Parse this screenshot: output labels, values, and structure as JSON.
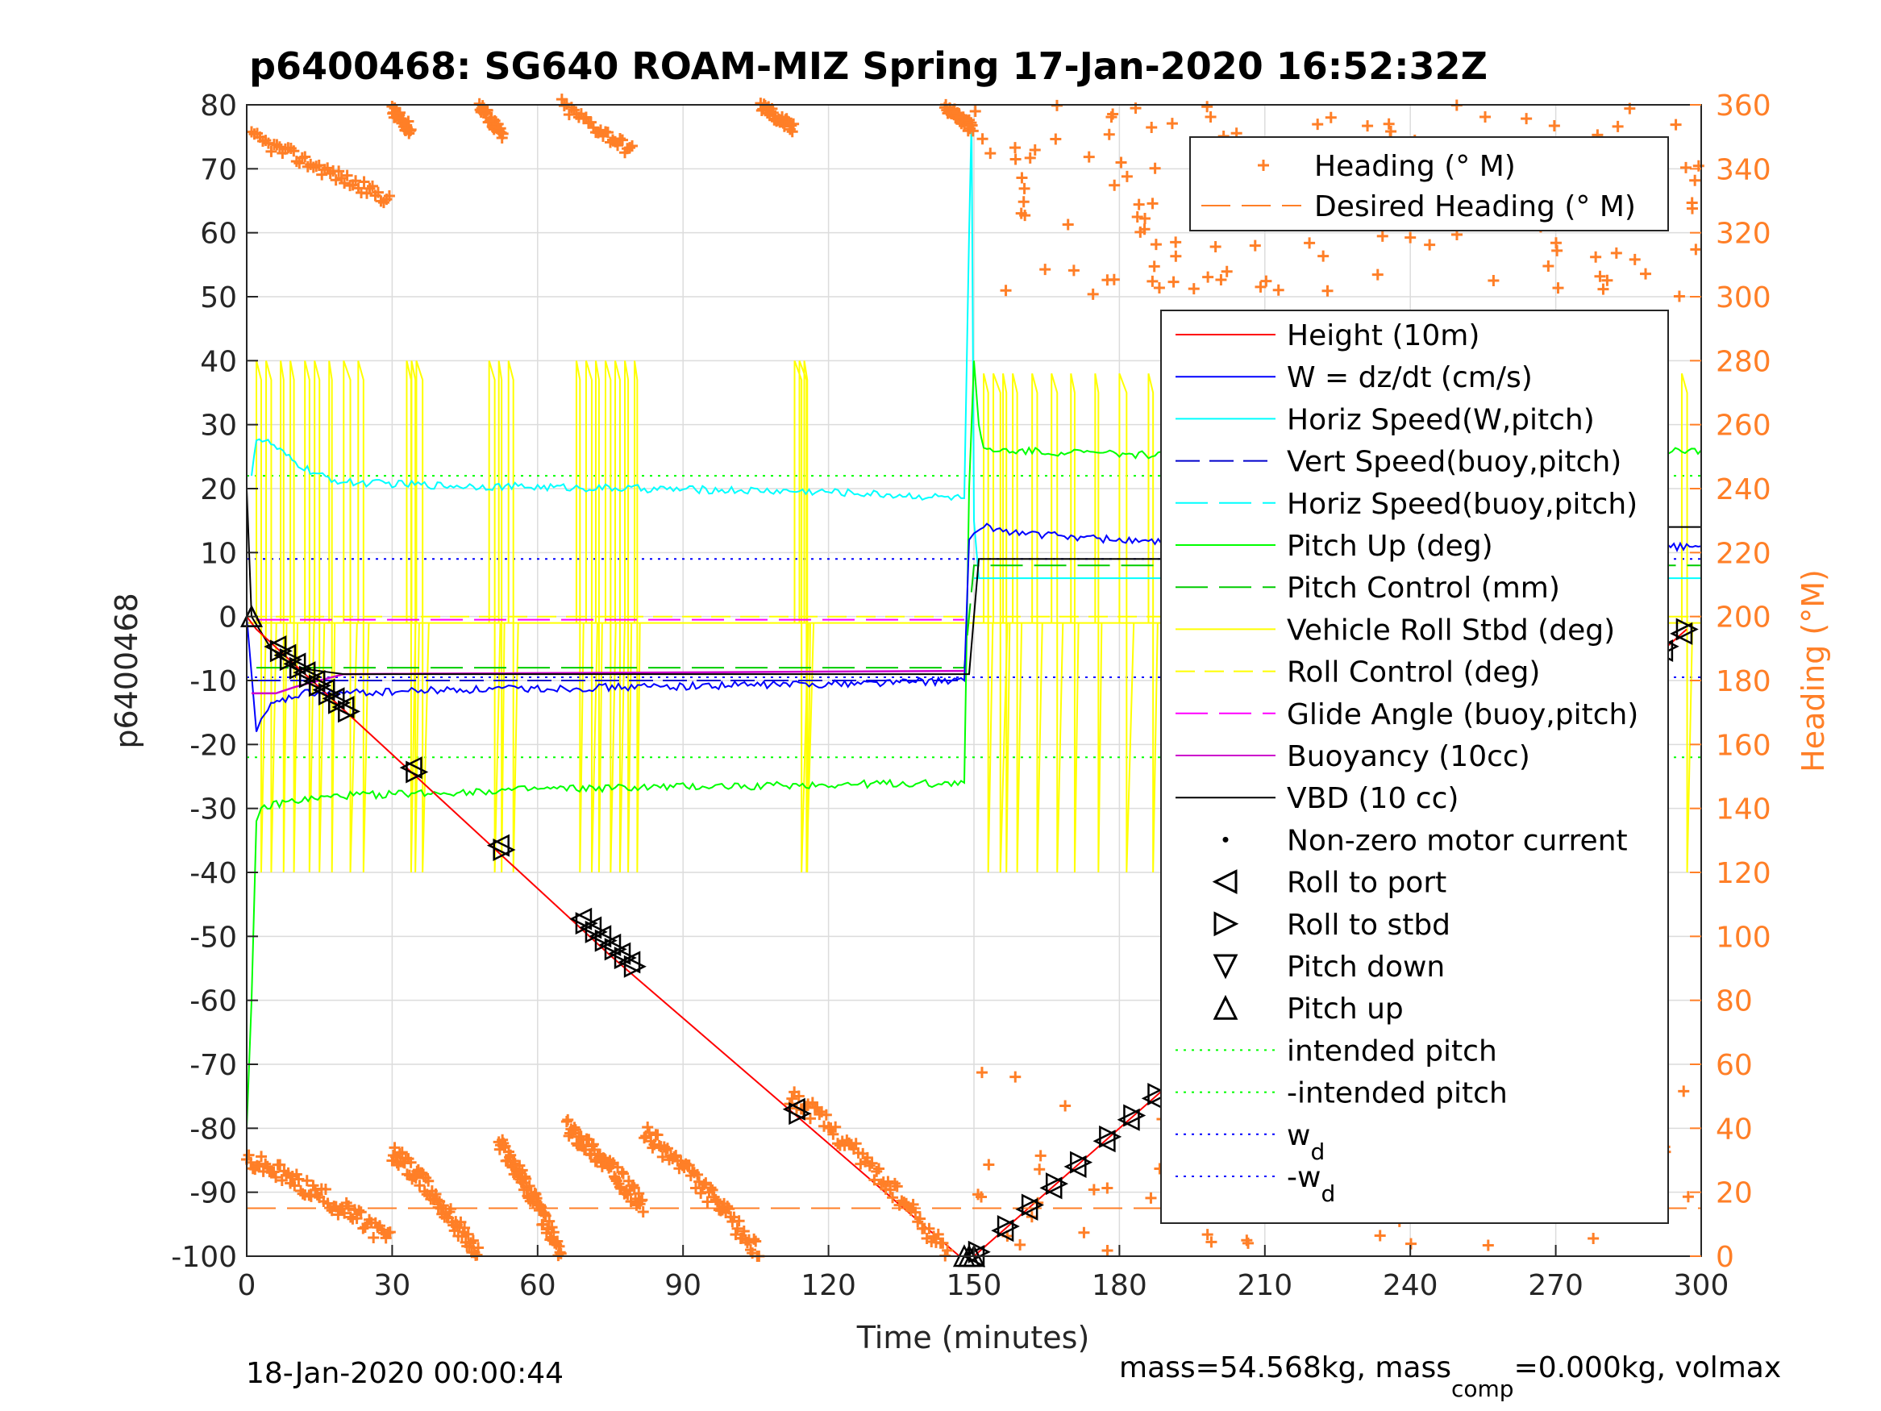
{
  "chart_data": {
    "type": "line",
    "title": "p6400468: SG640 ROAM-MIZ Spring 17-Jan-2020 16:52:32Z",
    "xlabel": "Time (minutes)",
    "ylabel": "p6400468",
    "y2label": "Heading (°M)",
    "xlim": [
      0,
      300
    ],
    "ylim": [
      -100,
      80
    ],
    "y2lim": [
      0,
      360
    ],
    "xticks": [
      0,
      30,
      60,
      90,
      120,
      150,
      180,
      210,
      240,
      270,
      300
    ],
    "yticks": [
      -100,
      -90,
      -80,
      -70,
      -60,
      -50,
      -40,
      -30,
      -20,
      -10,
      0,
      10,
      20,
      30,
      40,
      50,
      60,
      70,
      80
    ],
    "y2ticks": [
      0,
      20,
      40,
      60,
      80,
      100,
      120,
      140,
      160,
      180,
      200,
      220,
      240,
      260,
      280,
      300,
      320,
      340,
      360
    ],
    "grid": true,
    "legend_heading_placement": "top-right",
    "legend_main_placement": "right",
    "footer_left": "18-Jan-2020 00:00:44",
    "footer_right": {
      "a": "mass=54.568kg, mass",
      "sub": "comp",
      "b": "=0.000kg, volmax"
    },
    "colors": {
      "height": "#ff0000",
      "w": "#0000ff",
      "horiz_speed": "#00ffff",
      "vert_speed": "#0000cc",
      "pitch_up": "#00ff00",
      "pitch_control": "#00cc00",
      "roll": "#ffff00",
      "glide_angle": "#ff00ff",
      "buoyancy": "#cc00cc",
      "vbd": "#000000",
      "heading": "#ff7f27",
      "intended_pitch": "#00ff00",
      "wd": "#0000ff"
    },
    "series": [
      {
        "name": "Height (10m)",
        "key": "height",
        "x": [
          0,
          2,
          75,
          147,
          148,
          150,
          297
        ],
        "y": [
          0,
          -2,
          -53,
          -100,
          -100,
          -100,
          -2
        ]
      },
      {
        "name": "W = dz/dt (cm/s)",
        "key": "w",
        "x": [
          0,
          2,
          3,
          5,
          8,
          12,
          20,
          40,
          80,
          120,
          148,
          149,
          150,
          152,
          160,
          200,
          260,
          297,
          300
        ],
        "y": [
          0,
          -18,
          -16,
          -14,
          -13,
          -12,
          -12,
          -11.5,
          -11,
          -10.5,
          -10,
          12,
          13,
          14,
          13,
          11,
          10,
          11,
          11
        ]
      },
      {
        "name": "Horiz Speed(W,pitch)",
        "key": "horiz_speed",
        "x": [
          1,
          2,
          5,
          10,
          15,
          20,
          40,
          80,
          120,
          148,
          149,
          149.5,
          150,
          151
        ],
        "y": [
          22,
          28,
          27,
          24,
          22,
          21,
          20.5,
          20,
          19.5,
          18.5,
          60,
          78,
          15,
          6
        ]
      },
      {
        "name": "Vert Speed(buoy,pitch)",
        "key": "vert_speed",
        "x": [
          2,
          30,
          148
        ],
        "y": [
          -10,
          -10,
          -10
        ]
      },
      {
        "name": "Horiz Speed(buoy,pitch)",
        "key": "horiz_speed_buoy",
        "x": [
          150,
          300
        ],
        "y": [
          6,
          6
        ]
      },
      {
        "name": "Pitch Up (deg)",
        "key": "pitch_up",
        "x": [
          0,
          1,
          2,
          3,
          8,
          20,
          60,
          100,
          148,
          149,
          150,
          151,
          152,
          200,
          260,
          300
        ],
        "y": [
          -80,
          -60,
          -32,
          -30,
          -29,
          -28,
          -27,
          -26.5,
          -26,
          20,
          40,
          30,
          26,
          25,
          25,
          26
        ]
      },
      {
        "name": "Pitch Control (mm)",
        "key": "pitch_control",
        "x": [
          2,
          148,
          150,
          300
        ],
        "y": [
          -8,
          -8,
          8,
          8
        ]
      },
      {
        "name": "Vehicle Roll Stbd (deg)",
        "key": "roll",
        "x": [
          0,
          300
        ],
        "y": [
          -1,
          -1
        ]
      },
      {
        "name": "Roll Control (deg)",
        "key": "roll_control",
        "x": [
          0,
          300
        ],
        "y": [
          0,
          0
        ]
      },
      {
        "name": "Glide Angle (buoy,pitch)",
        "key": "glide_angle",
        "x": [
          2,
          148
        ],
        "y": [
          -0.5,
          -0.5
        ]
      },
      {
        "name": "Buoyancy (10cc)",
        "key": "buoyancy",
        "x": [
          1,
          6,
          10,
          20,
          148
        ],
        "y": [
          -12,
          -12,
          -11,
          -9,
          -8.5
        ]
      },
      {
        "name": "VBD (10 cc)",
        "key": "vbd",
        "x": [
          0,
          1,
          5,
          10,
          20,
          148,
          149,
          150,
          151,
          280,
          281,
          290,
          291,
          300
        ],
        "y": [
          20,
          0,
          -5,
          -8,
          -9,
          -9,
          -9,
          0,
          9,
          9,
          12,
          12,
          14,
          14
        ]
      },
      {
        "name": "Non-zero motor current",
        "key": "motor"
      },
      {
        "name": "Roll to port",
        "key": "roll_port"
      },
      {
        "name": "Roll to stbd",
        "key": "roll_stbd"
      },
      {
        "name": "Pitch down",
        "key": "pitch_down"
      },
      {
        "name": "Pitch up",
        "key": "pitch_up_marker"
      },
      {
        "name": "intended pitch",
        "key": "intended_pitch",
        "y": 22
      },
      {
        "name": "-intended pitch",
        "key": "neg_intended_pitch",
        "y": -22
      },
      {
        "name": "w_d",
        "key": "wd",
        "y": 9
      },
      {
        "name": "-w_d",
        "key": "neg_wd",
        "y": -9.5
      }
    ],
    "heading_series": [
      {
        "name": "Heading (° M)",
        "axis": "right"
      },
      {
        "name": "Desired Heading (° M)",
        "axis": "right",
        "value": 15
      }
    ],
    "legend_sub": {
      "w_d": "d",
      "neg_w_d": "d"
    },
    "roll_spikes_x": [
      2,
      4,
      7,
      9,
      12,
      14,
      17,
      20,
      23,
      33,
      34,
      35,
      50,
      52,
      54,
      68,
      70,
      72,
      74,
      76,
      78,
      80,
      113,
      114,
      115,
      152,
      154,
      156,
      158,
      162,
      166,
      170,
      175,
      180,
      186,
      192,
      198,
      204,
      210,
      220,
      232,
      240,
      246,
      256,
      266,
      276,
      284,
      290,
      296
    ],
    "markers": {
      "descent_x": [
        6,
        8,
        10,
        12,
        14,
        16,
        18,
        20,
        34,
        52,
        69,
        71,
        73,
        75,
        77,
        79,
        113
      ],
      "ascent_x": [
        150,
        156,
        161,
        166,
        171,
        177,
        182,
        187,
        192,
        198,
        203,
        208,
        212,
        216,
        220,
        224,
        228,
        232,
        236,
        240,
        244,
        248,
        252,
        256,
        260,
        264,
        268,
        272,
        276,
        280,
        284,
        288,
        292,
        296
      ],
      "bottom_x": [
        148,
        149,
        150
      ]
    },
    "heading_clusters": [
      {
        "x0": 1,
        "x1": 30,
        "h0": 350,
        "h1": 330,
        "kind": "band"
      },
      {
        "x0": 30,
        "x1": 34,
        "h0": 358,
        "h1": 352,
        "kind": "curve"
      },
      {
        "x0": 48,
        "x1": 53,
        "h0": 360,
        "h1": 350,
        "kind": "curve"
      },
      {
        "x0": 65,
        "x1": 80,
        "h0": 360,
        "h1": 345,
        "kind": "curve"
      },
      {
        "x0": 106,
        "x1": 113,
        "h0": 360,
        "h1": 352,
        "kind": "curve"
      },
      {
        "x0": 144,
        "x1": 150,
        "h0": 360,
        "h1": 352,
        "kind": "curve"
      },
      {
        "x0": 150,
        "x1": 300,
        "h0": 360,
        "h1": 300,
        "kind": "sparse"
      }
    ],
    "heading_low": [
      {
        "x0": 0,
        "x1": 30,
        "h0": 30,
        "h1": 5
      },
      {
        "x0": 30,
        "x1": 48,
        "h0": 32,
        "h1": 0
      },
      {
        "x0": 52,
        "x1": 65,
        "h0": 35,
        "h1": 0
      },
      {
        "x0": 66,
        "x1": 82,
        "h0": 40,
        "h1": 15
      },
      {
        "x0": 82,
        "x1": 106,
        "h0": 38,
        "h1": 0
      },
      {
        "x0": 112,
        "x1": 145,
        "h0": 50,
        "h1": 0
      },
      {
        "x0": 150,
        "x1": 300,
        "h0": 60,
        "h1": 0
      }
    ]
  }
}
